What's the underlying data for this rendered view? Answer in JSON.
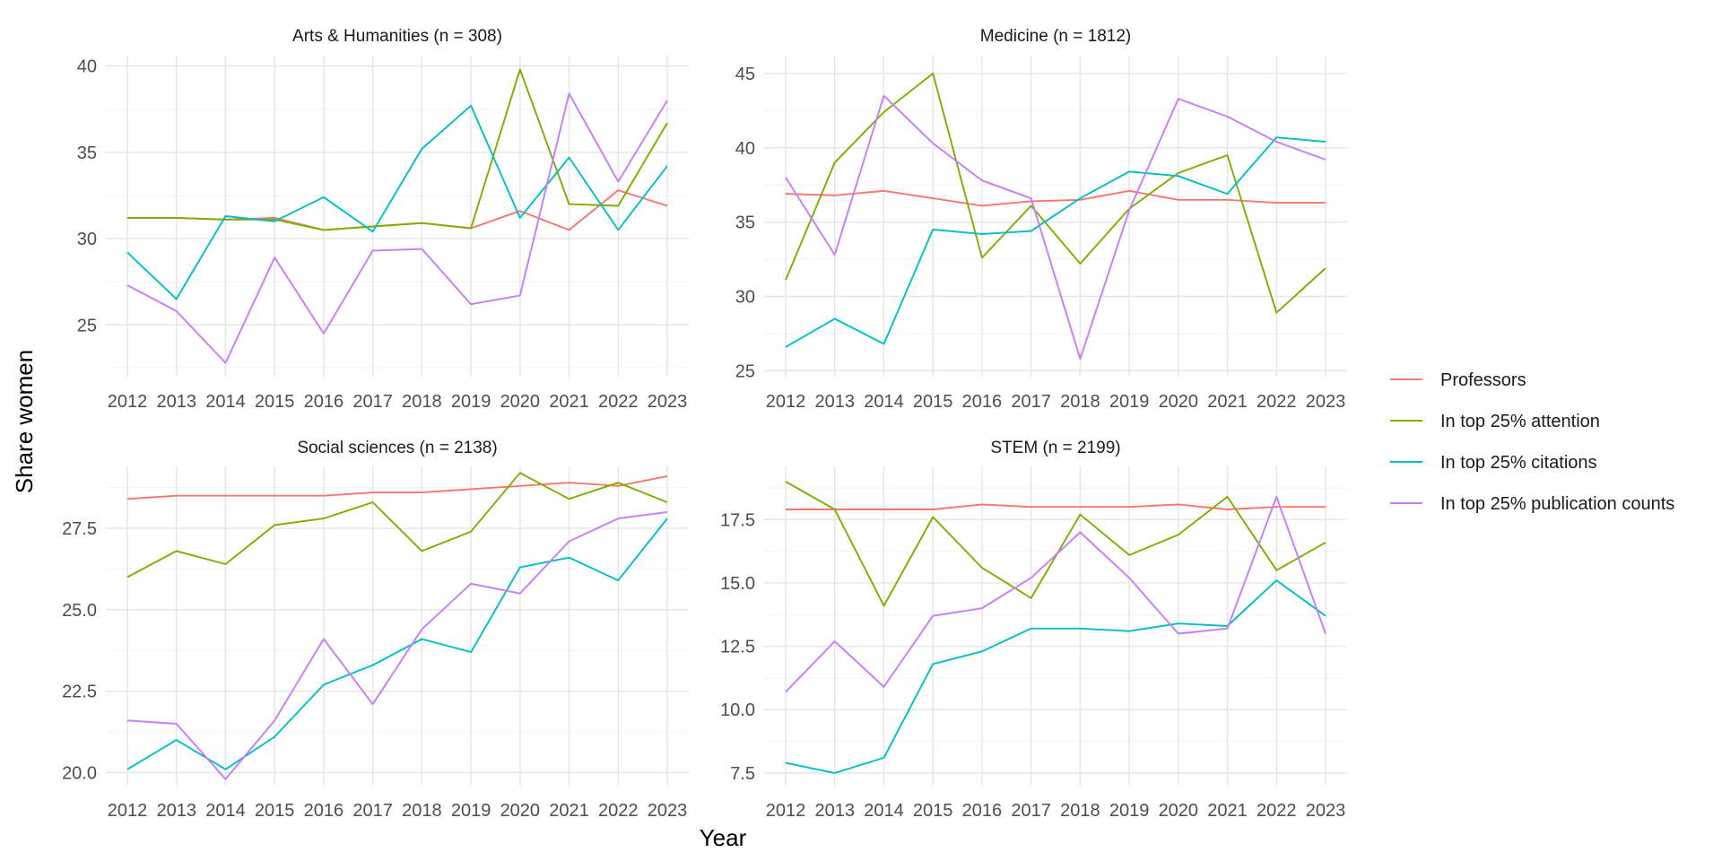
{
  "axes": {
    "xlabel": "Year",
    "ylabel": "Share women"
  },
  "legend": {
    "placement": "right",
    "items": [
      {
        "label": "Professors",
        "color": "#F8766D"
      },
      {
        "label": "In top 25% attention",
        "color": "#7CAE00"
      },
      {
        "label": "In top 25% citations",
        "color": "#00BFC4"
      },
      {
        "label": "In top 25% publication counts",
        "color": "#C77CFF"
      }
    ]
  },
  "chart_data": [
    {
      "type": "line",
      "title": "Arts & Humanities (n = 308)",
      "x": [
        2012,
        2013,
        2014,
        2015,
        2016,
        2017,
        2018,
        2019,
        2020,
        2021,
        2022,
        2023
      ],
      "ylim": [
        22,
        40.6
      ],
      "yticks": [
        25,
        30,
        35,
        40
      ],
      "ytick_labels": [
        "25",
        "30",
        "35",
        "40"
      ],
      "grid": true,
      "series": [
        {
          "name": "Professors",
          "values": [
            31.2,
            31.2,
            31.1,
            31.2,
            30.5,
            30.7,
            30.9,
            30.6,
            31.6,
            30.5,
            32.8,
            31.9
          ]
        },
        {
          "name": "In top 25% attention",
          "values": [
            31.2,
            31.2,
            31.1,
            31.1,
            30.5,
            30.7,
            30.9,
            30.6,
            39.8,
            32.0,
            31.9,
            36.7
          ]
        },
        {
          "name": "In top 25% citations",
          "values": [
            29.2,
            26.5,
            31.3,
            31.0,
            32.4,
            30.4,
            35.2,
            37.7,
            31.2,
            34.7,
            30.5,
            34.2
          ]
        },
        {
          "name": "In top 25% publication counts",
          "values": [
            27.3,
            25.8,
            22.8,
            28.9,
            24.5,
            29.3,
            29.4,
            26.2,
            26.7,
            38.4,
            33.3,
            38.0
          ]
        }
      ]
    },
    {
      "type": "line",
      "title": "Medicine (n = 1812)",
      "x": [
        2012,
        2013,
        2014,
        2015,
        2016,
        2017,
        2018,
        2019,
        2020,
        2021,
        2022,
        2023
      ],
      "ylim": [
        24.6,
        46.2
      ],
      "yticks": [
        25,
        30,
        35,
        40,
        45
      ],
      "ytick_labels": [
        "25",
        "30",
        "35",
        "40",
        "45"
      ],
      "grid": true,
      "series": [
        {
          "name": "Professors",
          "values": [
            36.9,
            36.8,
            37.1,
            36.6,
            36.1,
            36.4,
            36.5,
            37.1,
            36.5,
            36.5,
            36.3,
            36.3
          ]
        },
        {
          "name": "In top 25% attention",
          "values": [
            31.1,
            39.0,
            42.4,
            45.0,
            32.6,
            36.1,
            32.2,
            35.9,
            38.3,
            39.5,
            28.9,
            31.9
          ]
        },
        {
          "name": "In top 25% citations",
          "values": [
            26.6,
            28.5,
            26.8,
            34.5,
            34.2,
            34.4,
            36.6,
            38.4,
            38.1,
            36.9,
            40.7,
            40.4
          ]
        },
        {
          "name": "In top 25% publication counts",
          "values": [
            38.0,
            32.8,
            43.5,
            40.3,
            37.8,
            36.6,
            25.8,
            35.8,
            43.3,
            42.1,
            40.4,
            39.2
          ]
        }
      ]
    },
    {
      "type": "line",
      "title": "Social sciences (n = 2138)",
      "x": [
        2012,
        2013,
        2014,
        2015,
        2016,
        2017,
        2018,
        2019,
        2020,
        2021,
        2022,
        2023
      ],
      "ylim": [
        19.6,
        29.4
      ],
      "yticks": [
        20,
        22.5,
        25,
        27.5
      ],
      "ytick_labels": [
        "20.0",
        "22.5",
        "25.0",
        "27.5"
      ],
      "grid": true,
      "series": [
        {
          "name": "Professors",
          "values": [
            28.4,
            28.5,
            28.5,
            28.5,
            28.5,
            28.6,
            28.6,
            28.7,
            28.8,
            28.9,
            28.8,
            29.1
          ]
        },
        {
          "name": "In top 25% attention",
          "values": [
            26.0,
            26.8,
            26.4,
            27.6,
            27.8,
            28.3,
            26.8,
            27.4,
            29.2,
            28.4,
            28.9,
            28.3
          ]
        },
        {
          "name": "In top 25% citations",
          "values": [
            20.1,
            21.0,
            20.1,
            21.1,
            22.7,
            23.3,
            24.1,
            23.7,
            26.3,
            26.6,
            25.9,
            27.8
          ]
        },
        {
          "name": "In top 25% publication counts",
          "values": [
            21.6,
            21.5,
            19.8,
            21.6,
            24.1,
            22.1,
            24.4,
            25.8,
            25.5,
            27.1,
            27.8,
            28.0
          ]
        }
      ]
    },
    {
      "type": "line",
      "title": "STEM (n = 2199)",
      "x": [
        2012,
        2013,
        2014,
        2015,
        2016,
        2017,
        2018,
        2019,
        2020,
        2021,
        2022,
        2023
      ],
      "ylim": [
        7,
        19.6
      ],
      "yticks": [
        7.5,
        10,
        12.5,
        15,
        17.5
      ],
      "ytick_labels": [
        "7.5",
        "10.0",
        "12.5",
        "15.0",
        "17.5"
      ],
      "grid": true,
      "series": [
        {
          "name": "Professors",
          "values": [
            17.9,
            17.9,
            17.9,
            17.9,
            18.1,
            18.0,
            18.0,
            18.0,
            18.1,
            17.9,
            18.0,
            18.0
          ]
        },
        {
          "name": "In top 25% attention",
          "values": [
            19.0,
            17.9,
            14.1,
            17.6,
            15.6,
            14.4,
            17.7,
            16.1,
            16.9,
            18.4,
            15.5,
            16.6
          ]
        },
        {
          "name": "In top 25% citations",
          "values": [
            7.9,
            7.5,
            8.1,
            11.8,
            12.3,
            13.2,
            13.2,
            13.1,
            13.4,
            13.3,
            15.1,
            13.7
          ]
        },
        {
          "name": "In top 25% publication counts",
          "values": [
            10.7,
            12.7,
            10.9,
            13.7,
            14.0,
            15.2,
            17.0,
            15.2,
            13.0,
            13.2,
            18.4,
            13.0
          ]
        }
      ]
    }
  ]
}
